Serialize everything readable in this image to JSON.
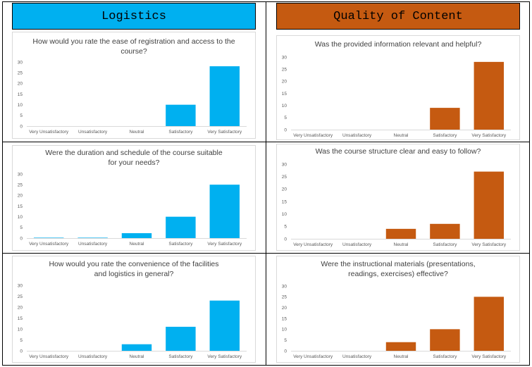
{
  "sections": {
    "logistics": {
      "title": "Logistics",
      "color": "#00B0F0"
    },
    "quality": {
      "title": "Quality of Content",
      "color": "#C55A11"
    }
  },
  "chart_data": [
    {
      "type": "bar",
      "section": "logistics",
      "title": "How would you rate the ease of registration and access to the course?",
      "categories": [
        "Very Unsatisfactory",
        "Unsatisfactory",
        "Neutral",
        "Satisfactory",
        "Very Satisfactory"
      ],
      "values": [
        0,
        0,
        0,
        10,
        28
      ],
      "ylim": [
        0,
        30
      ],
      "yticks": [
        0,
        5,
        10,
        15,
        20,
        25,
        30
      ],
      "color": "#00B0F0",
      "grid": false,
      "legend": "none"
    },
    {
      "type": "bar",
      "section": "quality",
      "title": "Was the provided information relevant and helpful?",
      "categories": [
        "Very Unsatisfactory",
        "Unsatisfactory",
        "Neutral",
        "Satisfactory",
        "Very Satisfactory"
      ],
      "values": [
        0,
        0,
        0,
        9,
        28
      ],
      "ylim": [
        0,
        30
      ],
      "yticks": [
        0,
        5,
        10,
        15,
        20,
        25,
        30
      ],
      "color": "#C55A11",
      "grid": false,
      "legend": "none"
    },
    {
      "type": "bar",
      "section": "logistics",
      "title": "Were the duration and schedule of the course suitable for your needs?",
      "categories": [
        "Very Unsatisfactory",
        "Unsatisfactory",
        "Neutral",
        "Satisfactory",
        "Very Satisfactory"
      ],
      "values": [
        0.2,
        0.2,
        2.3,
        10,
        25
      ],
      "ylim": [
        0,
        30
      ],
      "yticks": [
        0,
        5,
        10,
        15,
        20,
        25,
        30
      ],
      "color": "#00B0F0",
      "grid": false,
      "legend": "none"
    },
    {
      "type": "bar",
      "section": "quality",
      "title": "Was the course structure clear and easy to follow?",
      "categories": [
        "Very Unsatisfactory",
        "Unsatisfactory",
        "Neutral",
        "Satisfactory",
        "Very Satisfactory"
      ],
      "values": [
        0,
        0,
        4,
        6,
        27
      ],
      "ylim": [
        0,
        30
      ],
      "yticks": [
        0,
        5,
        10,
        15,
        20,
        25,
        30
      ],
      "color": "#C55A11",
      "grid": false,
      "legend": "none"
    },
    {
      "type": "bar",
      "section": "logistics",
      "title": "How would you rate the convenience of the facilities and logistics in general?",
      "categories": [
        "Very Unsatisfactory",
        "Unsatisfactory",
        "Neutral",
        "Satisfactory",
        "Very Satisfactory"
      ],
      "values": [
        0,
        0,
        3,
        11,
        23
      ],
      "ylim": [
        0,
        30
      ],
      "yticks": [
        0,
        5,
        10,
        15,
        20,
        25,
        30
      ],
      "color": "#00B0F0",
      "grid": false,
      "legend": "none"
    },
    {
      "type": "bar",
      "section": "quality",
      "title": "Were the instructional materials (presentations, readings, exercises) effective?",
      "categories": [
        "Very Unsatisfactory",
        "Unsatisfactory",
        "Neutral",
        "Satisfactory",
        "Very Satisfactory"
      ],
      "values": [
        0,
        0,
        4,
        10,
        25
      ],
      "ylim": [
        0,
        30
      ],
      "yticks": [
        0,
        5,
        10,
        15,
        20,
        25,
        30
      ],
      "color": "#C55A11",
      "grid": false,
      "legend": "none"
    }
  ]
}
